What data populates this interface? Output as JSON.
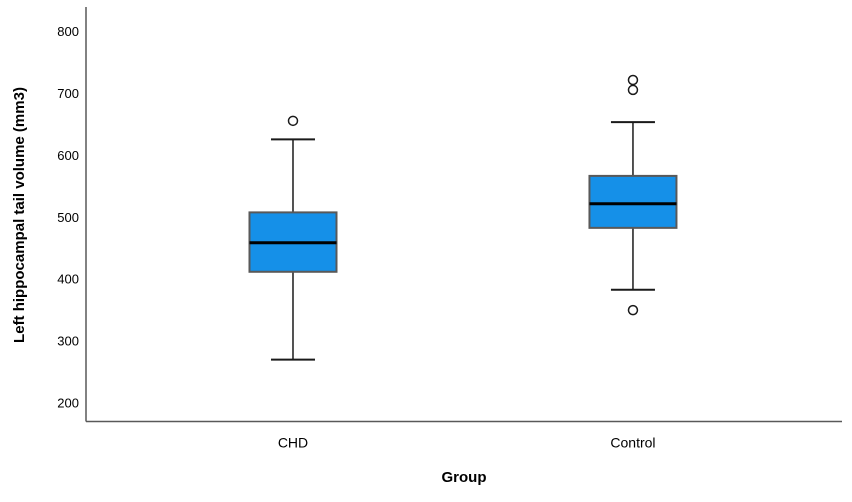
{
  "chart_data": {
    "type": "box",
    "title": "",
    "xlabel": "Group",
    "ylabel": "Left hippocampal tail volume (mm3)",
    "ylim": [
      170,
      840
    ],
    "yticks": [
      200,
      300,
      400,
      500,
      600,
      700,
      800
    ],
    "categories": [
      "CHD",
      "Control"
    ],
    "series": [
      {
        "name": "CHD",
        "whisker_low": 270,
        "q1": 412,
        "median": 459,
        "q3": 508,
        "whisker_high": 626,
        "outliers": [
          656
        ]
      },
      {
        "name": "Control",
        "whisker_low": 383,
        "q1": 483,
        "median": 522,
        "q3": 567,
        "whisker_high": 654,
        "outliers": [
          722,
          706,
          350
        ]
      }
    ],
    "legend": null,
    "grid": false,
    "colors": {
      "box_fill": "#1590E8",
      "box_border": "#595959",
      "median": "#000000",
      "whisker": "#1A1A1A",
      "axis": "#595959",
      "outlier_stroke": "#1A1A1A",
      "outlier_fill": "#FFFFFF",
      "background": "#FFFFFF"
    }
  }
}
